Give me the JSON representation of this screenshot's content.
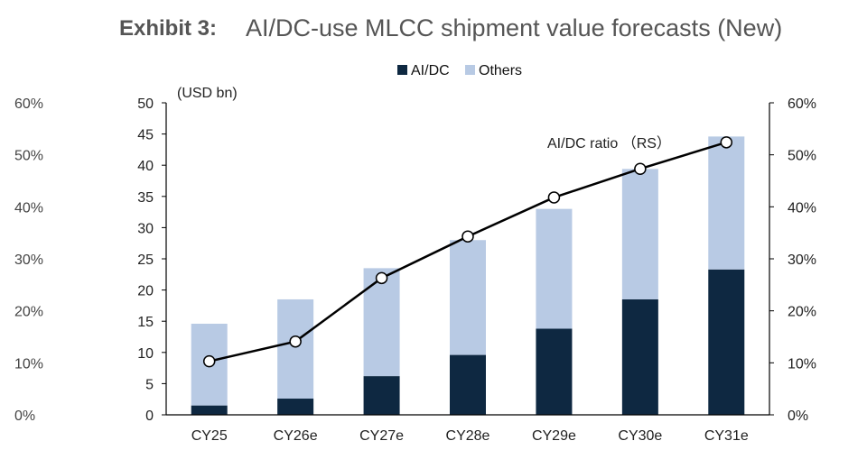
{
  "header": {
    "exhibit": "Exhibit 3:",
    "title": "AI/DC-use MLCC shipment value forecasts (New)"
  },
  "chart_data": {
    "type": "bar",
    "stacked": true,
    "categories": [
      "CY25",
      "CY26e",
      "CY27e",
      "CY28e",
      "CY29e",
      "CY30e",
      "CY31e"
    ],
    "series": [
      {
        "name": "AI/DC",
        "values": [
          1.5,
          2.6,
          6.2,
          9.6,
          13.8,
          18.5,
          23.3
        ],
        "color": "#0e2841"
      },
      {
        "name": "Others",
        "values": [
          13.1,
          15.9,
          17.3,
          18.4,
          19.2,
          20.9,
          21.3
        ],
        "color": "#b8cae4"
      }
    ],
    "line_series": {
      "name": "AI/DC ratio",
      "label": "AI/DC ratio （RS）",
      "axis": "right",
      "values": [
        10.3,
        14.1,
        26.3,
        34.3,
        41.8,
        47.3,
        52.4
      ],
      "color": "#000000"
    },
    "left_axis": {
      "unit_label": "(USD bn)",
      "ylim": [
        0,
        50
      ],
      "ticks": [
        "0",
        "5",
        "10",
        "15",
        "20",
        "25",
        "30",
        "35",
        "40",
        "45",
        "50"
      ]
    },
    "right_axis": {
      "ylim": [
        0,
        60
      ],
      "ticks": [
        "0%",
        "10%",
        "20%",
        "30%",
        "40%",
        "50%",
        "60%"
      ]
    },
    "ghost_axis_ticks": [
      "0%",
      "10%",
      "20%",
      "30%",
      "40%",
      "50%",
      "60%"
    ],
    "legend": {
      "placement": "top-center",
      "items": [
        "AI/DC",
        "Others"
      ]
    },
    "grid": false
  }
}
